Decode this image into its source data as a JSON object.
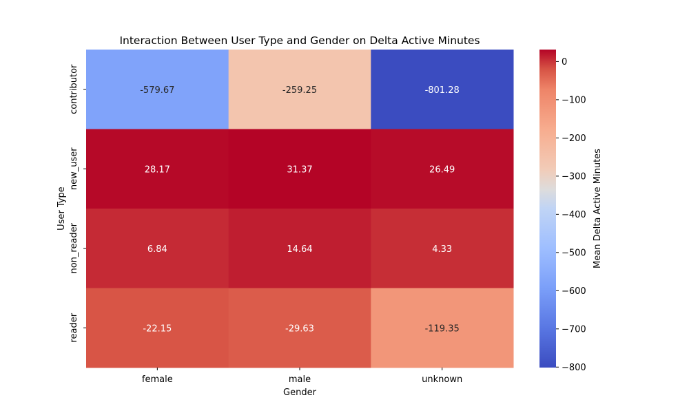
{
  "chart_data": {
    "type": "heatmap",
    "title": "Interaction Between User Type and Gender on Delta Active Minutes",
    "xlabel": "Gender",
    "ylabel": "User Type",
    "x_categories": [
      "female",
      "male",
      "unknown"
    ],
    "y_categories": [
      "contributor",
      "new_user",
      "non_reader",
      "reader"
    ],
    "values": [
      [
        -579.67,
        -259.25,
        -801.28
      ],
      [
        28.17,
        31.37,
        26.49
      ],
      [
        6.84,
        14.64,
        4.33
      ],
      [
        -22.15,
        -29.63,
        -119.35
      ]
    ],
    "value_labels": [
      [
        "-579.67",
        "-259.25",
        "-801.28"
      ],
      [
        "28.17",
        "31.37",
        "26.49"
      ],
      [
        "6.84",
        "14.64",
        "4.33"
      ],
      [
        "-22.15",
        "-29.63",
        "-119.35"
      ]
    ],
    "colorbar": {
      "label": "Mean Delta Active Minutes",
      "range": [
        -801.28,
        31.37
      ],
      "ticks": [
        0,
        -100,
        -200,
        -300,
        -400,
        -500,
        -600,
        -700,
        -800
      ],
      "tick_labels": [
        "0",
        "−100",
        "−200",
        "−300",
        "−400",
        "−500",
        "−600",
        "−700",
        "−800"
      ],
      "colormap": "coolwarm"
    }
  }
}
